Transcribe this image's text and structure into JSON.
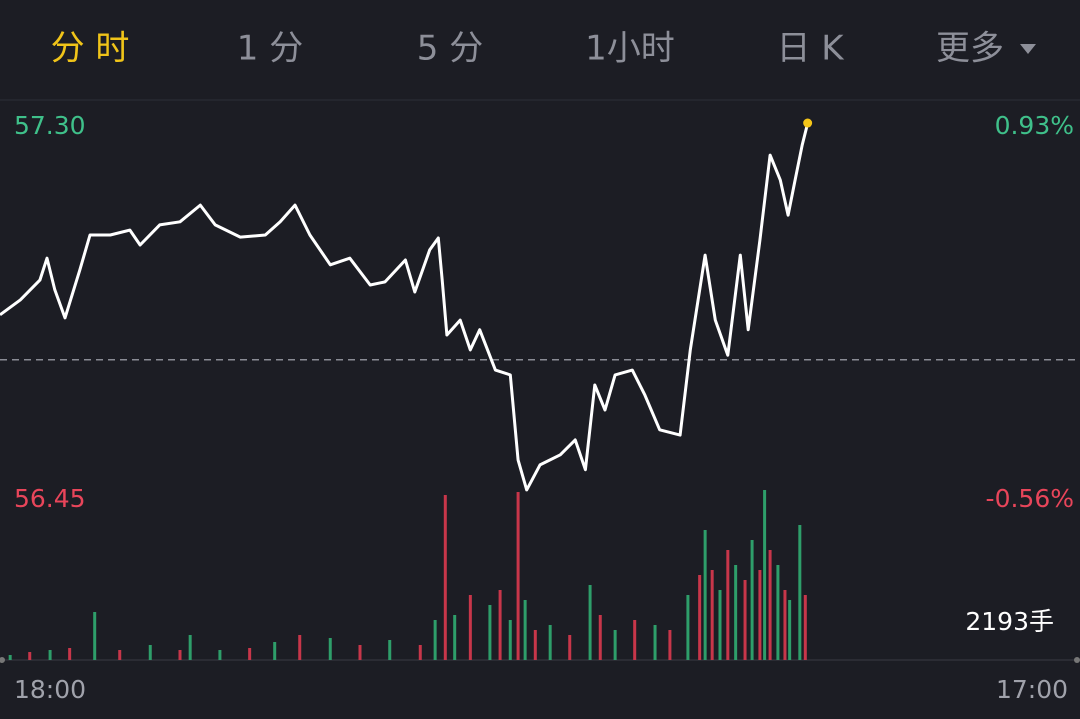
{
  "tabs": [
    "分 时",
    "1 分",
    "5 分",
    "1小时",
    "日 K",
    "更多"
  ],
  "active_tab": 0,
  "chart_data": [
    {
      "type": "line",
      "x": [
        0,
        26,
        51,
        60,
        70,
        83,
        102,
        115,
        141,
        166,
        179,
        204,
        230,
        256,
        275,
        307,
        339,
        358,
        377,
        396,
        422,
        447,
        473,
        492,
        518,
        530,
        549,
        560,
        565,
        571,
        588,
        601,
        613,
        633,
        652,
        662,
        673,
        690,
        716,
        735,
        748,
        760,
        773,
        786,
        808,
        824,
        843,
        869,
        882,
        901,
        914,
        930,
        946,
        956,
        971,
        984,
        997,
        1007,
        1016,
        1025,
        1032
      ],
      "values": [
        56.872,
        56.906,
        56.951,
        57.001,
        56.929,
        56.865,
        56.974,
        57.054,
        57.054,
        57.065,
        57.031,
        57.077,
        57.084,
        57.122,
        57.077,
        57.049,
        57.054,
        57.084,
        57.122,
        57.054,
        56.986,
        57.001,
        56.94,
        56.947,
        56.997,
        56.924,
        57.02,
        57.047,
        56.951,
        56.826,
        56.86,
        56.792,
        56.838,
        56.746,
        56.735,
        56.541,
        56.473,
        56.53,
        56.553,
        56.587,
        56.519,
        56.712,
        56.655,
        56.735,
        56.746,
        56.689,
        56.61,
        56.598,
        56.792,
        57.008,
        56.86,
        56.78,
        57.008,
        56.838,
        57.042,
        57.236,
        57.179,
        57.099,
        57.179,
        57.259,
        57.309
      ],
      "color": "#ffffff",
      "last_point_color": "#f5c518",
      "xlim": [
        0,
        1380
      ],
      "xticks": [
        {
          "value": 0,
          "label": "18:00"
        },
        {
          "value": 1380,
          "label": "17:00"
        }
      ],
      "ylim": [
        56.45,
        57.3
      ],
      "yticks": [
        {
          "value": 57.3,
          "label": "57.30"
        },
        56.45
      ],
      "y2lim": [
        -0.56,
        0.93
      ],
      "y2ticks": [
        {
          "value": 0.93,
          "label": "0.93%"
        },
        {
          "value": -0.56,
          "label": "-0.56%"
        }
      ]
    },
    {
      "type": "bar",
      "x": [
        13,
        38,
        64,
        89,
        121,
        153,
        192,
        230,
        243,
        281,
        319,
        351,
        383,
        422,
        460,
        498,
        537,
        556,
        569,
        581,
        601,
        626,
        639,
        652,
        662,
        671,
        684,
        703,
        728,
        754,
        767,
        786,
        811,
        837,
        856,
        879,
        894,
        901,
        910,
        920,
        930,
        940,
        952,
        961,
        971,
        977,
        984,
        994,
        1003,
        1009,
        1022,
        1029
      ],
      "values": [
        297,
        474,
        593,
        712,
        2846,
        593,
        890,
        593,
        1483,
        593,
        712,
        1067,
        1483,
        1305,
        890,
        1186,
        890,
        2372,
        9785,
        2669,
        3855,
        3262,
        4151,
        2372,
        9962,
        3558,
        1779,
        2076,
        1483,
        4448,
        2669,
        1779,
        2372,
        2076,
        1779,
        3855,
        5041,
        7709,
        5337,
        4151,
        6523,
        5634,
        4744,
        7116,
        5337,
        10081,
        6523,
        5634,
        4151,
        3558,
        8006,
        3855
      ],
      "colors": [
        "#2e9e6a",
        "#c8364a",
        "#2e9e6a",
        "#c8364a",
        "#2e9e6a",
        "#c8364a",
        "#2e9e6a",
        "#c8364a",
        "#2e9e6a",
        "#2e9e6a",
        "#c8364a",
        "#2e9e6a",
        "#c8364a",
        "#2e9e6a",
        "#c8364a",
        "#2e9e6a",
        "#c8364a",
        "#2e9e6a",
        "#c8364a",
        "#2e9e6a",
        "#c8364a",
        "#2e9e6a",
        "#c8364a",
        "#2e9e6a",
        "#c8364a",
        "#2e9e6a",
        "#c8364a",
        "#2e9e6a",
        "#c8364a",
        "#2e9e6a",
        "#c8364a",
        "#2e9e6a",
        "#c8364a",
        "#2e9e6a",
        "#c8364a",
        "#2e9e6a",
        "#c8364a",
        "#2e9e6a",
        "#c8364a",
        "#2e9e6a",
        "#c8364a",
        "#2e9e6a",
        "#c8364a",
        "#2e9e6a",
        "#c8364a",
        "#2e9e6a",
        "#c8364a",
        "#2e9e6a",
        "#c8364a",
        "#2e9e6a",
        "#2e9e6a",
        "#c8364a"
      ],
      "xlim": [
        0,
        1380
      ],
      "ylim": [
        0,
        10200
      ],
      "yticks": [
        {
          "value": 2193,
          "label": "2193手"
        }
      ]
    }
  ]
}
